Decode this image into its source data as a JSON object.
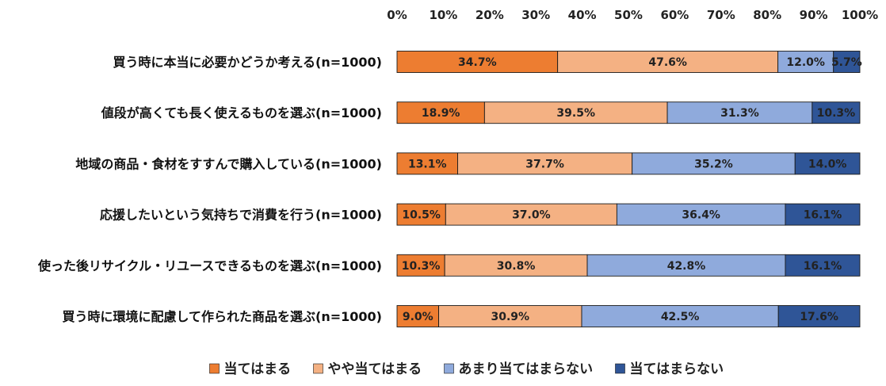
{
  "chart_data": {
    "type": "bar",
    "orientation": "horizontal",
    "stacked": true,
    "xlim": [
      0,
      100
    ],
    "xticks": [
      "0%",
      "10%",
      "20%",
      "30%",
      "40%",
      "50%",
      "60%",
      "70%",
      "80%",
      "90%",
      "100%"
    ],
    "categories": [
      "買う時に本当に必要かどうか考える(n=1000)",
      "値段が高くても長く使えるものを選ぶ(n=1000)",
      "地域の商品・食材をすすんで購入している(n=1000)",
      "応援したいという気持ちで消費を行う(n=1000)",
      "使った後リサイクル・リユースできるものを選ぶ(n=1000)",
      "買う時に環境に配慮して作られた商品を選ぶ(n=1000)"
    ],
    "series": [
      {
        "name": "当てはまる",
        "color": "#ED7D31",
        "values": [
          34.7,
          18.9,
          13.1,
          10.5,
          10.3,
          9.0
        ],
        "labels": [
          "34.7%",
          "18.9%",
          "13.1%",
          "10.5%",
          "10.3%",
          "9.0%"
        ]
      },
      {
        "name": "やや当てはまる",
        "color": "#F4B183",
        "values": [
          47.6,
          39.5,
          37.7,
          37.0,
          30.8,
          30.9
        ],
        "labels": [
          "47.6%",
          "39.5%",
          "37.7%",
          "37.0%",
          "30.8%",
          "30.9%"
        ]
      },
      {
        "name": "あまり当てはまらない",
        "color": "#8FAADC",
        "values": [
          12.0,
          31.3,
          35.2,
          36.4,
          42.8,
          42.5
        ],
        "labels": [
          "12.0%",
          "31.3%",
          "35.2%",
          "36.4%",
          "42.8%",
          "42.5%"
        ]
      },
      {
        "name": "当てはまらない",
        "color": "#2F5597",
        "values": [
          5.7,
          10.3,
          14.0,
          16.1,
          16.1,
          17.6
        ],
        "labels": [
          "5.7%",
          "10.3%",
          "14.0%",
          "16.1%",
          "16.1%",
          "17.6%"
        ]
      }
    ],
    "legend_position": "bottom"
  }
}
